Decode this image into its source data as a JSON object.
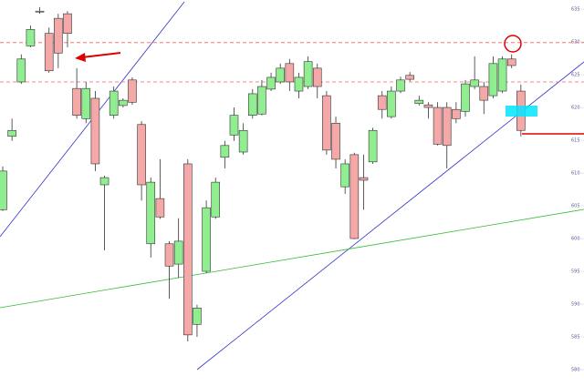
{
  "chart_data": {
    "type": "candlestick",
    "ylim": [
      577.5,
      636.4
    ],
    "yticks": [
      580,
      585,
      590,
      595,
      600,
      605,
      610,
      615,
      620,
      625,
      630,
      635
    ],
    "up_color": "#90ee90",
    "down_color": "#f4a8a8",
    "levels": [
      629.9,
      623.9
    ],
    "open": [
      604.4,
      615.6,
      623.9,
      629.4,
      634.6,
      631.3,
      633.6,
      634.3,
      622.9,
      618.3,
      621.4,
      608.2,
      618.8,
      620.3,
      624.2,
      617.4,
      599.2,
      606.1,
      599.2,
      596.1,
      611.4,
      586.9,
      595.0,
      603.3,
      612.4,
      615.8,
      613.2,
      618.8,
      619.0,
      622.8,
      623.9,
      626.7,
      622.5,
      623.2,
      626.0,
      621.8,
      617.6,
      607.9,
      612.8,
      609.3,
      611.7,
      621.8,
      618.6,
      622.5,
      624.9,
      620.6,
      620.4,
      620.0,
      620.0,
      619.7,
      619.4,
      623.2,
      623.2,
      621.8,
      622.5,
      627.4,
      622.5
    ],
    "high": [
      611.0,
      618.3,
      628.1,
      632.5,
      635.3,
      632.2,
      634.3,
      634.7,
      626.0,
      623.9,
      622.5,
      609.6,
      623.2,
      621.4,
      624.6,
      617.9,
      609.3,
      612.1,
      599.6,
      603.1,
      612.1,
      589.9,
      605.8,
      609.3,
      614.9,
      620.0,
      617.6,
      622.8,
      624.2,
      625.3,
      626.7,
      627.4,
      625.3,
      627.8,
      626.7,
      622.5,
      618.6,
      612.1,
      613.1,
      612.8,
      616.9,
      622.5,
      623.2,
      624.7,
      625.4,
      621.8,
      620.8,
      620.8,
      620.8,
      620.8,
      624.2,
      627.8,
      623.9,
      627.8,
      627.8,
      628.1,
      623.5
    ],
    "low": [
      604.2,
      614.9,
      623.6,
      629.2,
      634.3,
      625.3,
      626.0,
      629.2,
      618.3,
      617.6,
      610.3,
      598.2,
      618.3,
      620.0,
      620.4,
      605.8,
      597.1,
      603.0,
      590.8,
      594.0,
      584.3,
      585.0,
      594.7,
      603.0,
      610.7,
      614.9,
      612.8,
      618.3,
      618.8,
      622.5,
      623.6,
      622.5,
      621.4,
      622.8,
      621.4,
      612.8,
      610.7,
      606.8,
      599.9,
      604.4,
      611.4,
      618.3,
      618.3,
      622.2,
      624.0,
      620.3,
      618.3,
      614.2,
      610.7,
      617.6,
      618.6,
      622.8,
      619.0,
      621.4,
      622.2,
      626.0,
      615.6
    ],
    "close": [
      610.3,
      616.5,
      627.4,
      631.9,
      634.7,
      625.6,
      628.3,
      631.3,
      618.8,
      622.9,
      611.4,
      609.3,
      622.5,
      621.1,
      620.8,
      608.2,
      608.6,
      603.3,
      595.8,
      599.6,
      585.3,
      589.4,
      604.7,
      608.6,
      614.2,
      618.8,
      616.5,
      622.1,
      623.2,
      624.6,
      626.0,
      623.9,
      624.6,
      627.0,
      623.2,
      613.5,
      612.1,
      611.4,
      600.0,
      608.9,
      616.5,
      619.7,
      622.5,
      624.2,
      624.3,
      621.1,
      620.0,
      614.4,
      614.2,
      618.3,
      623.6,
      624.2,
      621.1,
      626.7,
      627.4,
      626.4,
      616.5
    ]
  }
}
